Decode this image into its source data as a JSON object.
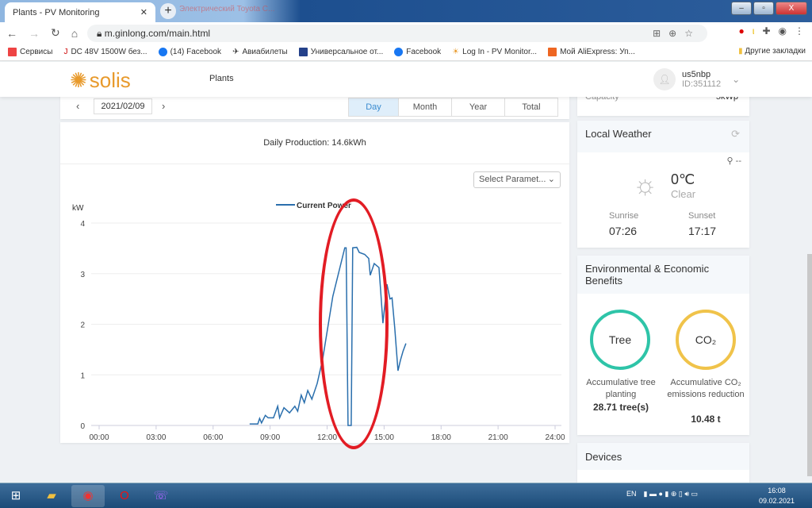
{
  "browser": {
    "tab_title": "Plants - PV Monitoring",
    "tab2_title": "Электрический Toyota C...",
    "url": "m.ginlong.com/main.html",
    "bookmarks": [
      "Сервисы",
      "DC 48V 1500W без...",
      "(14) Facebook",
      "Авиабилеты",
      "Универсальное от...",
      "Facebook",
      "Log In - PV Monitor...",
      "Мой AliExpress: Уп..."
    ],
    "other_bookmarks": "Другие закладки"
  },
  "header": {
    "logo": "solis",
    "nav": "Plants",
    "username": "us5nbp",
    "user_id": "ID:351112"
  },
  "date": {
    "value": "2021/02/09",
    "periods": [
      "Day",
      "Month",
      "Year",
      "Total"
    ],
    "active": "Day"
  },
  "capacity": {
    "label": "Capacity",
    "value": "5kWp"
  },
  "production": "Daily Production: 14.6kWh",
  "param_select": "Select Paramet...",
  "weather": {
    "title": "Local Weather",
    "location": "--",
    "temp": "0℃",
    "condition": "Clear",
    "sunrise_label": "Sunrise",
    "sunrise": "07:26",
    "sunset_label": "Sunset",
    "sunset": "17:17"
  },
  "benefits": {
    "title": "Environmental & Economic Benefits",
    "tree_label": "Tree",
    "tree_desc": "Accumulative tree planting",
    "tree_value": "28.71 tree(s)",
    "co2_label": "CO₂",
    "co2_desc": "Accumulative CO₂ emissions reduction",
    "co2_value": "10.48 t"
  },
  "devices": {
    "title": "Devices"
  },
  "taskbar": {
    "lang": "EN",
    "time": "16:08",
    "date": "09.02.2021"
  },
  "chart_data": {
    "type": "line",
    "ylabel": "kW",
    "ylim": [
      0,
      4
    ],
    "yticks": [
      "0",
      "1",
      "2",
      "3",
      "4"
    ],
    "xticks": [
      "00:00",
      "03:00",
      "06:00",
      "09:00",
      "12:00",
      "15:00",
      "18:00",
      "21:00",
      "24:00"
    ],
    "xlim": [
      0,
      24
    ],
    "legend": "top-center",
    "grid": true,
    "color": "#2a6fad",
    "series": [
      {
        "name": "Current Power",
        "points": [
          [
            7.92,
            0.03
          ],
          [
            8.35,
            0.03
          ],
          [
            8.45,
            0.14
          ],
          [
            8.55,
            0.05
          ],
          [
            8.75,
            0.2
          ],
          [
            8.9,
            0.15
          ],
          [
            9.18,
            0.15
          ],
          [
            9.4,
            0.38
          ],
          [
            9.5,
            0.15
          ],
          [
            9.73,
            0.35
          ],
          [
            10.02,
            0.25
          ],
          [
            10.3,
            0.38
          ],
          [
            10.45,
            0.28
          ],
          [
            10.64,
            0.6
          ],
          [
            10.8,
            0.45
          ],
          [
            10.98,
            0.69
          ],
          [
            11.2,
            0.52
          ],
          [
            11.48,
            0.83
          ],
          [
            11.76,
            1.3
          ],
          [
            12.3,
            2.55
          ],
          [
            12.93,
            3.51
          ],
          [
            13.0,
            3.51
          ],
          [
            13.1,
            0
          ],
          [
            13.27,
            0
          ],
          [
            13.35,
            3.51
          ],
          [
            13.56,
            3.52
          ],
          [
            13.69,
            3.42
          ],
          [
            13.98,
            3.38
          ],
          [
            14.19,
            3.3
          ],
          [
            14.27,
            2.97
          ],
          [
            14.48,
            3.2
          ],
          [
            14.73,
            3.12
          ],
          [
            14.82,
            2.65
          ],
          [
            14.94,
            2.02
          ],
          [
            15.15,
            2.79
          ],
          [
            15.31,
            2.5
          ],
          [
            15.42,
            2.52
          ],
          [
            15.56,
            1.93
          ],
          [
            15.73,
            1.08
          ],
          [
            15.86,
            1.29
          ],
          [
            16.0,
            1.47
          ],
          [
            16.15,
            1.62
          ]
        ]
      }
    ]
  }
}
